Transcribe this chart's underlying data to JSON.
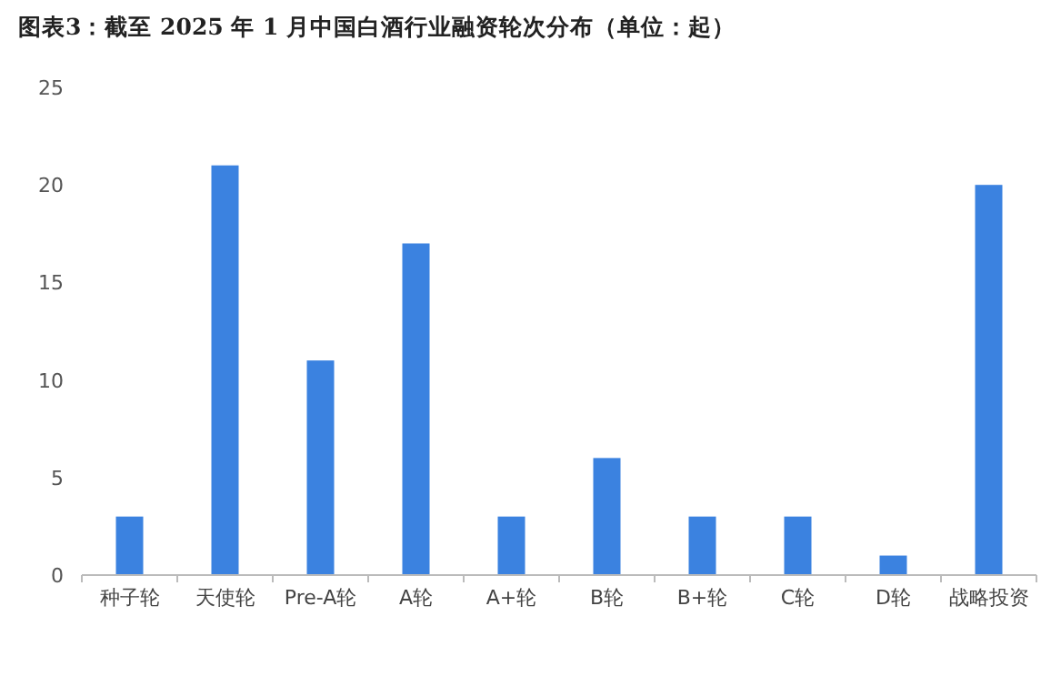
{
  "chart_data": {
    "type": "bar",
    "title": "图表3：截至 2025 年 1 月中国白酒行业融资轮次分布（单位：起）",
    "categories": [
      "种子轮",
      "天使轮",
      "Pre-A轮",
      "A轮",
      "A+轮",
      "B轮",
      "B+轮",
      "C轮",
      "D轮",
      "战略投资"
    ],
    "values": [
      3,
      21,
      11,
      17,
      3,
      6,
      3,
      3,
      1,
      20
    ],
    "color": "#3b82e0",
    "ylim": [
      0,
      25
    ],
    "yticks": [
      0,
      5,
      10,
      15,
      20,
      25
    ],
    "grid": false
  }
}
